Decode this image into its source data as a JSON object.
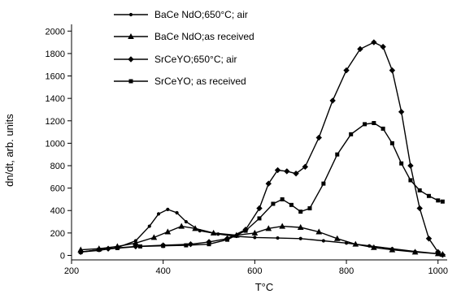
{
  "chart_data": {
    "type": "line",
    "xlabel": "T°C",
    "ylabel": "dn/dt, arb. units",
    "xlim": [
      200,
      1020
    ],
    "ylim": [
      -40,
      2060
    ],
    "x_ticks": [
      200,
      400,
      600,
      800,
      1000
    ],
    "y_ticks": [
      0,
      200,
      400,
      600,
      800,
      1000,
      1200,
      1400,
      1600,
      1800,
      2000
    ],
    "legend_position": "top-left",
    "grid": false,
    "series": [
      {
        "name": "BaCe NdO;650°C; air",
        "marker": "dot",
        "points": [
          [
            220,
            30
          ],
          [
            260,
            45
          ],
          [
            300,
            70
          ],
          [
            340,
            130
          ],
          [
            370,
            260
          ],
          [
            390,
            370
          ],
          [
            410,
            410
          ],
          [
            430,
            380
          ],
          [
            450,
            300
          ],
          [
            480,
            220
          ],
          [
            520,
            190
          ],
          [
            560,
            170
          ],
          [
            600,
            160
          ],
          [
            650,
            155
          ],
          [
            700,
            150
          ],
          [
            750,
            130
          ],
          [
            800,
            110
          ],
          [
            850,
            85
          ],
          [
            900,
            60
          ],
          [
            950,
            35
          ],
          [
            1000,
            15
          ],
          [
            1010,
            10
          ]
        ]
      },
      {
        "name": "BaCe NdO;as received",
        "marker": "triangle",
        "points": [
          [
            220,
            50
          ],
          [
            260,
            60
          ],
          [
            300,
            80
          ],
          [
            340,
            110
          ],
          [
            380,
            160
          ],
          [
            410,
            210
          ],
          [
            440,
            260
          ],
          [
            470,
            240
          ],
          [
            510,
            200
          ],
          [
            560,
            180
          ],
          [
            600,
            200
          ],
          [
            630,
            240
          ],
          [
            660,
            260
          ],
          [
            700,
            250
          ],
          [
            740,
            210
          ],
          [
            780,
            150
          ],
          [
            820,
            100
          ],
          [
            860,
            70
          ],
          [
            900,
            50
          ],
          [
            950,
            30
          ],
          [
            1000,
            15
          ],
          [
            1010,
            10
          ]
        ]
      },
      {
        "name": "SrCeYO;650°C; air",
        "marker": "diamond",
        "points": [
          [
            220,
            30
          ],
          [
            280,
            60
          ],
          [
            340,
            80
          ],
          [
            400,
            90
          ],
          [
            460,
            100
          ],
          [
            500,
            120
          ],
          [
            540,
            150
          ],
          [
            580,
            230
          ],
          [
            610,
            420
          ],
          [
            630,
            640
          ],
          [
            650,
            760
          ],
          [
            670,
            750
          ],
          [
            690,
            730
          ],
          [
            710,
            790
          ],
          [
            740,
            1050
          ],
          [
            770,
            1380
          ],
          [
            800,
            1650
          ],
          [
            830,
            1840
          ],
          [
            860,
            1900
          ],
          [
            880,
            1860
          ],
          [
            900,
            1650
          ],
          [
            920,
            1280
          ],
          [
            940,
            800
          ],
          [
            960,
            420
          ],
          [
            980,
            150
          ],
          [
            1000,
            30
          ],
          [
            1010,
            5
          ]
        ]
      },
      {
        "name": "SrCeYO; as received",
        "marker": "square",
        "points": [
          [
            220,
            30
          ],
          [
            260,
            50
          ],
          [
            300,
            65
          ],
          [
            350,
            80
          ],
          [
            400,
            85
          ],
          [
            450,
            90
          ],
          [
            500,
            100
          ],
          [
            540,
            140
          ],
          [
            580,
            220
          ],
          [
            610,
            330
          ],
          [
            640,
            460
          ],
          [
            660,
            500
          ],
          [
            680,
            450
          ],
          [
            700,
            390
          ],
          [
            720,
            420
          ],
          [
            750,
            640
          ],
          [
            780,
            900
          ],
          [
            810,
            1080
          ],
          [
            840,
            1170
          ],
          [
            860,
            1180
          ],
          [
            880,
            1130
          ],
          [
            900,
            1000
          ],
          [
            920,
            820
          ],
          [
            940,
            670
          ],
          [
            960,
            580
          ],
          [
            980,
            530
          ],
          [
            1000,
            490
          ],
          [
            1010,
            480
          ]
        ]
      }
    ]
  }
}
